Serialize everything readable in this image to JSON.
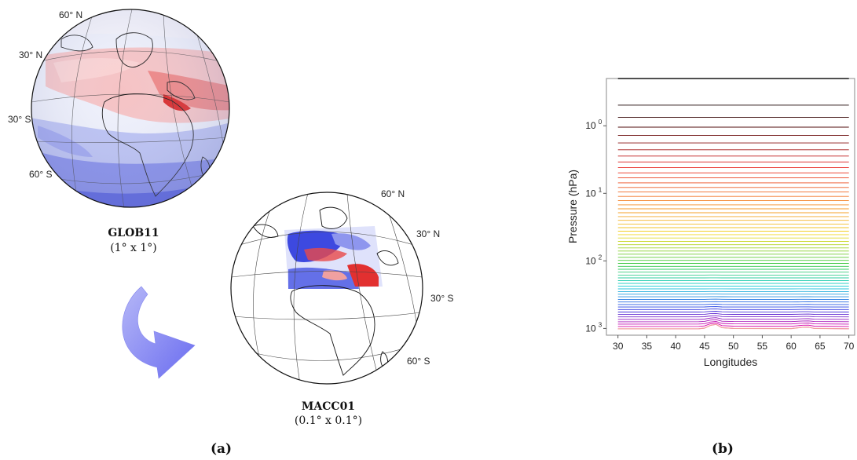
{
  "panel_a": {
    "label": "(a)",
    "globe_left": {
      "name": "GLOB11",
      "resolution": "(1° x 1°)",
      "lat_labels": [
        "60° N",
        "30° N",
        "30° S",
        "60° S"
      ]
    },
    "globe_right": {
      "name": "MACC01",
      "resolution": "(0.1° x 0.1°)",
      "lat_labels": [
        "60° N",
        "30° N",
        "30° S",
        "60° S"
      ]
    },
    "colors": {
      "positive": "#e02020",
      "negative": "#2030e0",
      "arrow": "#7a7cf0"
    }
  },
  "panel_b": {
    "label": "(b)"
  },
  "chart_data": {
    "type": "line",
    "title": "",
    "xlabel": "Longitudes",
    "ylabel": "Pressure (hPa)",
    "xlim": [
      28,
      71
    ],
    "xticks": [
      30,
      35,
      40,
      45,
      50,
      55,
      60,
      65,
      70
    ],
    "ylim_log10": [
      -0.7,
      3.1
    ],
    "yscale": "log",
    "yinvert": true,
    "yticks": [
      {
        "base": "10",
        "exp": "0",
        "value": 1
      },
      {
        "base": "10",
        "exp": "1",
        "value": 10
      },
      {
        "base": "10",
        "exp": "2",
        "value": 100
      },
      {
        "base": "10",
        "exp": "3",
        "value": 1000
      }
    ],
    "x": [
      30,
      44,
      45,
      46,
      47,
      48,
      50,
      60,
      62,
      63,
      64,
      70
    ],
    "level_count": 60,
    "top_level_hPa": 0.2,
    "surface_hPa": 1013,
    "surface_profile_hPa": [
      1013,
      1010,
      990,
      900,
      870,
      975,
      1000,
      1005,
      960,
      955,
      1000,
      1012
    ],
    "color_order": [
      "black",
      "red",
      "orange",
      "yellow",
      "green",
      "cyan",
      "blue",
      "magenta"
    ],
    "grid": false,
    "legend": "none"
  }
}
